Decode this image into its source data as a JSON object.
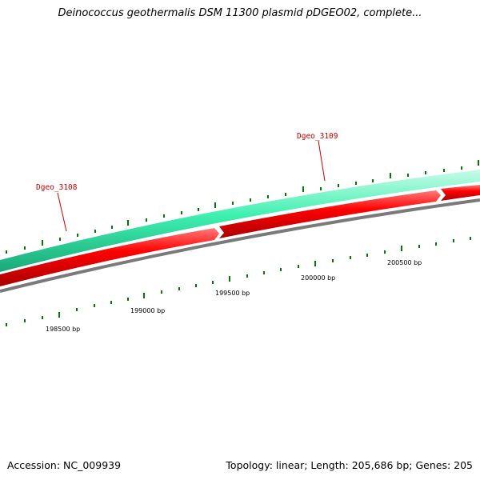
{
  "header": {
    "title": "Deinococcus geothermalis DSM 11300 plasmid pDGEO02, complete..."
  },
  "footer": {
    "accession": "Accession: NC_009939",
    "summary": "Topology: linear; Length: 205,686 bp; Genes: 205"
  },
  "colors": {
    "forward_strand": "#2ee8a8",
    "reverse_strand": "#e00000",
    "backbone": "#808080",
    "ticks": "#007a00",
    "gene_label": "#cc0000"
  },
  "genes": [
    {
      "name": "Dgeo_3108",
      "strand": "forward",
      "start": 198500,
      "end": 199500
    },
    {
      "name": "Dgeo_3109",
      "strand": "forward",
      "start": 199500,
      "end": 201000
    }
  ],
  "axis": {
    "labels": [
      {
        "bp": 198500,
        "text": "198500 bp"
      },
      {
        "bp": 199000,
        "text": "199000 bp"
      },
      {
        "bp": 199500,
        "text": "199500 bp"
      },
      {
        "bp": 200000,
        "text": "200000 bp"
      },
      {
        "bp": 200500,
        "text": "200500 bp"
      }
    ]
  }
}
